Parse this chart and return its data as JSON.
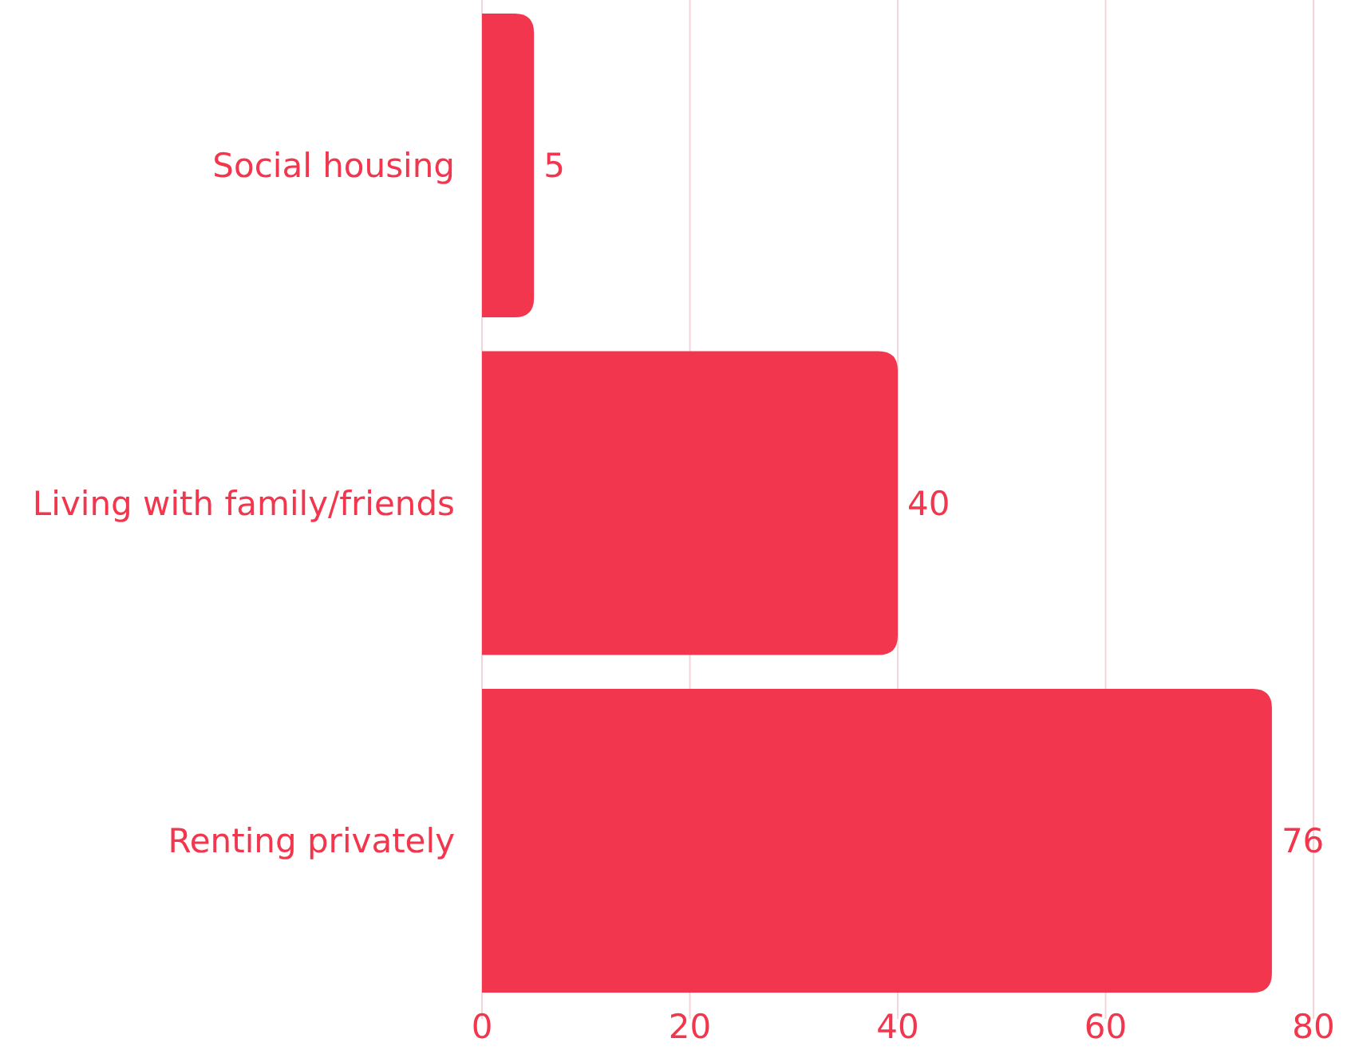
{
  "chart_data": {
    "type": "bar",
    "orientation": "horizontal",
    "categories": [
      "Social housing",
      "Living with family/friends",
      "Renting privately"
    ],
    "values": [
      5,
      40,
      76
    ],
    "color": "#f2364d",
    "xlim": [
      0,
      80
    ],
    "xticks": [
      0,
      20,
      40,
      60,
      80
    ],
    "grid": "x",
    "data_labels": true
  }
}
